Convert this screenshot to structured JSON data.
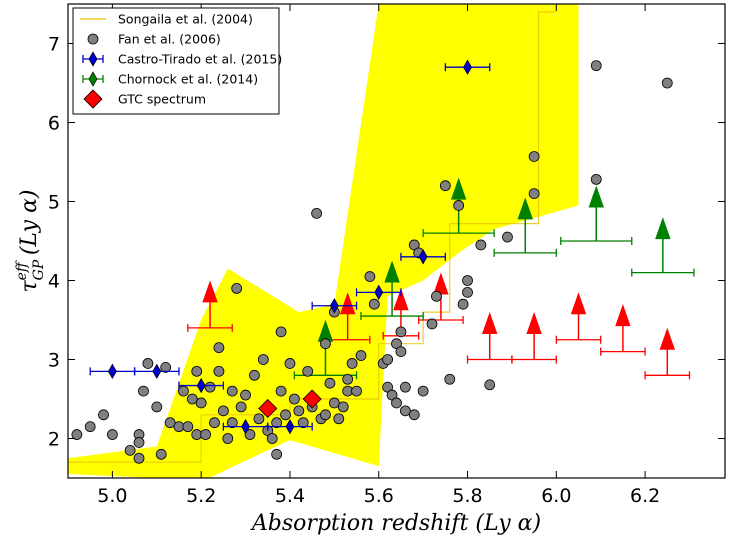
{
  "chart_data": {
    "type": "scatter",
    "xlabel": "Absorption redshift (Ly α)",
    "ylabel": "τ_GP^eff (Ly α)",
    "xlim": [
      4.9,
      6.38
    ],
    "ylim": [
      1.5,
      7.5
    ],
    "x_ticks": [
      "5.0",
      "5.2",
      "5.4",
      "5.6",
      "5.8",
      "6.0",
      "6.2"
    ],
    "y_ticks": [
      "2",
      "3",
      "4",
      "5",
      "6",
      "7"
    ],
    "grid": false,
    "legend_position": "top-left",
    "colors": {
      "songaila": "#e8c000",
      "band": "#ffff00",
      "fan": "#808080",
      "castro": "#0000cc",
      "chornock": "#008000",
      "gtc": "#ff0000",
      "limits": "#ff0000"
    },
    "series": [
      {
        "name": "Songaila et al. (2004)",
        "kind": "step-line",
        "band_upper": [
          [
            4.9,
            1.75
          ],
          [
            5.1,
            1.9
          ],
          [
            5.2,
            3.5
          ],
          [
            5.26,
            4.15
          ],
          [
            5.42,
            3.6
          ],
          [
            5.5,
            3.7
          ],
          [
            5.6,
            7.5
          ],
          [
            5.96,
            7.5
          ],
          [
            6.05,
            7.5
          ],
          [
            6.05,
            4.95
          ],
          [
            5.86,
            4.65
          ],
          [
            5.78,
            4.35
          ],
          [
            5.7,
            4.0
          ],
          [
            5.62,
            3.8
          ]
        ],
        "band_lower": [
          [
            5.6,
            1.65
          ],
          [
            5.4,
            1.98
          ],
          [
            5.3,
            1.72
          ],
          [
            5.2,
            1.45
          ],
          [
            5.1,
            1.5
          ],
          [
            4.9,
            1.55
          ]
        ],
        "steps": [
          [
            4.9,
            1.7
          ],
          [
            5.2,
            1.7
          ],
          [
            5.2,
            2.3
          ],
          [
            5.4,
            2.3
          ],
          [
            5.4,
            2.5
          ],
          [
            5.6,
            2.5
          ],
          [
            5.6,
            3.2
          ],
          [
            5.7,
            3.2
          ],
          [
            5.7,
            3.6
          ],
          [
            5.76,
            3.6
          ],
          [
            5.76,
            4.72
          ],
          [
            5.96,
            4.72
          ],
          [
            5.96,
            7.4
          ],
          [
            6.0,
            7.4
          ]
        ]
      },
      {
        "name": "Fan et al. (2006)",
        "kind": "points",
        "points": [
          [
            4.92,
            2.05
          ],
          [
            4.95,
            2.15
          ],
          [
            4.98,
            2.3
          ],
          [
            5.0,
            2.05
          ],
          [
            5.04,
            1.85
          ],
          [
            5.06,
            2.05
          ],
          [
            5.06,
            1.95
          ],
          [
            5.06,
            1.75
          ],
          [
            5.07,
            2.6
          ],
          [
            5.08,
            2.95
          ],
          [
            5.1,
            2.4
          ],
          [
            5.11,
            1.8
          ],
          [
            5.12,
            2.9
          ],
          [
            5.13,
            2.2
          ],
          [
            5.15,
            2.15
          ],
          [
            5.16,
            2.6
          ],
          [
            5.17,
            2.15
          ],
          [
            5.18,
            2.5
          ],
          [
            5.19,
            2.85
          ],
          [
            5.19,
            2.05
          ],
          [
            5.2,
            2.45
          ],
          [
            5.21,
            2.05
          ],
          [
            5.22,
            2.65
          ],
          [
            5.23,
            2.2
          ],
          [
            5.24,
            3.15
          ],
          [
            5.24,
            2.85
          ],
          [
            5.25,
            2.35
          ],
          [
            5.26,
            2.0
          ],
          [
            5.27,
            2.2
          ],
          [
            5.27,
            2.6
          ],
          [
            5.28,
            3.9
          ],
          [
            5.29,
            2.4
          ],
          [
            5.3,
            2.55
          ],
          [
            5.31,
            2.05
          ],
          [
            5.32,
            2.8
          ],
          [
            5.33,
            2.25
          ],
          [
            5.34,
            3.0
          ],
          [
            5.35,
            2.4
          ],
          [
            5.35,
            2.1
          ],
          [
            5.36,
            2.0
          ],
          [
            5.37,
            1.8
          ],
          [
            5.37,
            2.2
          ],
          [
            5.38,
            3.35
          ],
          [
            5.38,
            2.6
          ],
          [
            5.39,
            2.3
          ],
          [
            5.4,
            2.95
          ],
          [
            5.41,
            2.5
          ],
          [
            5.42,
            2.35
          ],
          [
            5.43,
            2.2
          ],
          [
            5.44,
            2.85
          ],
          [
            5.45,
            2.4
          ],
          [
            5.46,
            4.85
          ],
          [
            5.47,
            2.25
          ],
          [
            5.48,
            2.3
          ],
          [
            5.48,
            3.2
          ],
          [
            5.49,
            2.7
          ],
          [
            5.5,
            3.6
          ],
          [
            5.5,
            2.45
          ],
          [
            5.51,
            2.25
          ],
          [
            5.52,
            2.4
          ],
          [
            5.53,
            2.6
          ],
          [
            5.53,
            2.75
          ],
          [
            5.54,
            2.95
          ],
          [
            5.55,
            2.6
          ],
          [
            5.56,
            3.05
          ],
          [
            5.58,
            4.05
          ],
          [
            5.59,
            3.7
          ],
          [
            5.61,
            2.95
          ],
          [
            5.62,
            2.65
          ],
          [
            5.62,
            3.0
          ],
          [
            5.63,
            2.55
          ],
          [
            5.64,
            3.2
          ],
          [
            5.64,
            2.45
          ],
          [
            5.65,
            3.35
          ],
          [
            5.65,
            3.1
          ],
          [
            5.66,
            2.65
          ],
          [
            5.66,
            2.35
          ],
          [
            5.68,
            4.45
          ],
          [
            5.68,
            2.3
          ],
          [
            5.69,
            4.35
          ],
          [
            5.7,
            2.6
          ],
          [
            5.72,
            3.45
          ],
          [
            5.73,
            3.8
          ],
          [
            5.75,
            5.2
          ],
          [
            5.76,
            2.75
          ],
          [
            5.78,
            4.95
          ],
          [
            5.79,
            3.7
          ],
          [
            5.8,
            4.0
          ],
          [
            5.8,
            3.85
          ],
          [
            5.83,
            4.45
          ],
          [
            5.85,
            2.68
          ],
          [
            5.89,
            4.55
          ],
          [
            5.95,
            5.1
          ],
          [
            5.95,
            5.57
          ],
          [
            6.09,
            6.72
          ],
          [
            6.09,
            5.28
          ],
          [
            6.25,
            6.5
          ]
        ]
      },
      {
        "name": "Castro-Tirado et al. (2015)",
        "kind": "points-xerr",
        "points": [
          [
            5.0,
            2.85,
            0.05
          ],
          [
            5.1,
            2.85,
            0.05
          ],
          [
            5.2,
            2.67,
            0.05
          ],
          [
            5.3,
            2.15,
            0.05
          ],
          [
            5.4,
            2.15,
            0.05
          ],
          [
            5.5,
            3.68,
            0.05
          ],
          [
            5.6,
            3.85,
            0.05
          ],
          [
            5.7,
            4.3,
            0.05
          ],
          [
            5.8,
            6.7,
            0.05
          ]
        ]
      },
      {
        "name": "Chornock et al. (2014)",
        "kind": "points-xerr-lower-limits",
        "points": [
          [
            5.48,
            2.8,
            0.07
          ],
          [
            5.63,
            3.55,
            0.07
          ],
          [
            5.78,
            4.6,
            0.08
          ],
          [
            5.93,
            4.35,
            0.07
          ],
          [
            6.09,
            4.5,
            0.08
          ],
          [
            6.24,
            4.1,
            0.07
          ]
        ]
      },
      {
        "name": "GTC spectrum",
        "kind": "points",
        "points": [
          [
            5.35,
            2.38
          ],
          [
            5.45,
            2.5
          ]
        ]
      },
      {
        "name": "",
        "kind": "lower-limits-xerr",
        "points": [
          [
            5.22,
            3.4,
            0.05
          ],
          [
            5.53,
            3.25,
            0.05
          ],
          [
            5.65,
            3.3,
            0.04
          ],
          [
            5.74,
            3.5,
            0.05
          ],
          [
            5.85,
            3.0,
            0.05
          ],
          [
            5.95,
            3.0,
            0.05
          ],
          [
            6.05,
            3.25,
            0.05
          ],
          [
            6.15,
            3.1,
            0.05
          ],
          [
            6.25,
            2.8,
            0.05
          ]
        ]
      }
    ]
  }
}
